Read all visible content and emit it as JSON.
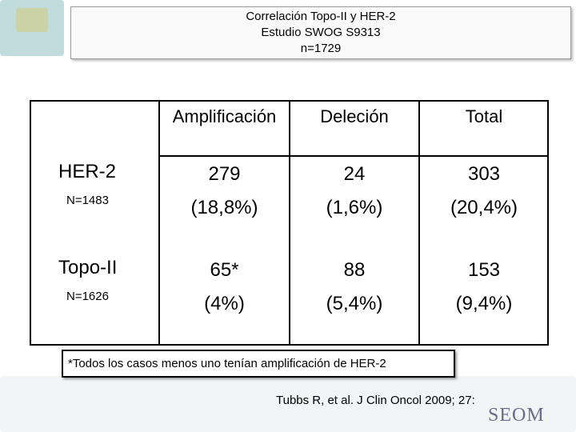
{
  "header": {
    "title": [
      "Correlación Topo-II y HER-2",
      "Estudio SWOG S9313",
      "n=1729"
    ]
  },
  "table": {
    "columns": [
      "Amplificación",
      "Deleción",
      "Total"
    ],
    "rows": [
      {
        "label": "HER-2",
        "sublabel": "N=1483",
        "cells": [
          [
            "279",
            "(18,8%)"
          ],
          [
            "24",
            "(1,6%)"
          ],
          [
            "303",
            "(20,4%)"
          ]
        ]
      },
      {
        "label": "Topo-II",
        "sublabel": "N=1626",
        "cells": [
          [
            "65*",
            "(4%)"
          ],
          [
            "88",
            "(5,4%)"
          ],
          [
            "153",
            "(9,4%)"
          ]
        ]
      }
    ]
  },
  "footnote": "*Todos los casos menos uno tenían amplificación de HER-2",
  "citation": "Tubbs R, et al. J Clin Oncol 2009; 27:",
  "logo": "SEOM"
}
